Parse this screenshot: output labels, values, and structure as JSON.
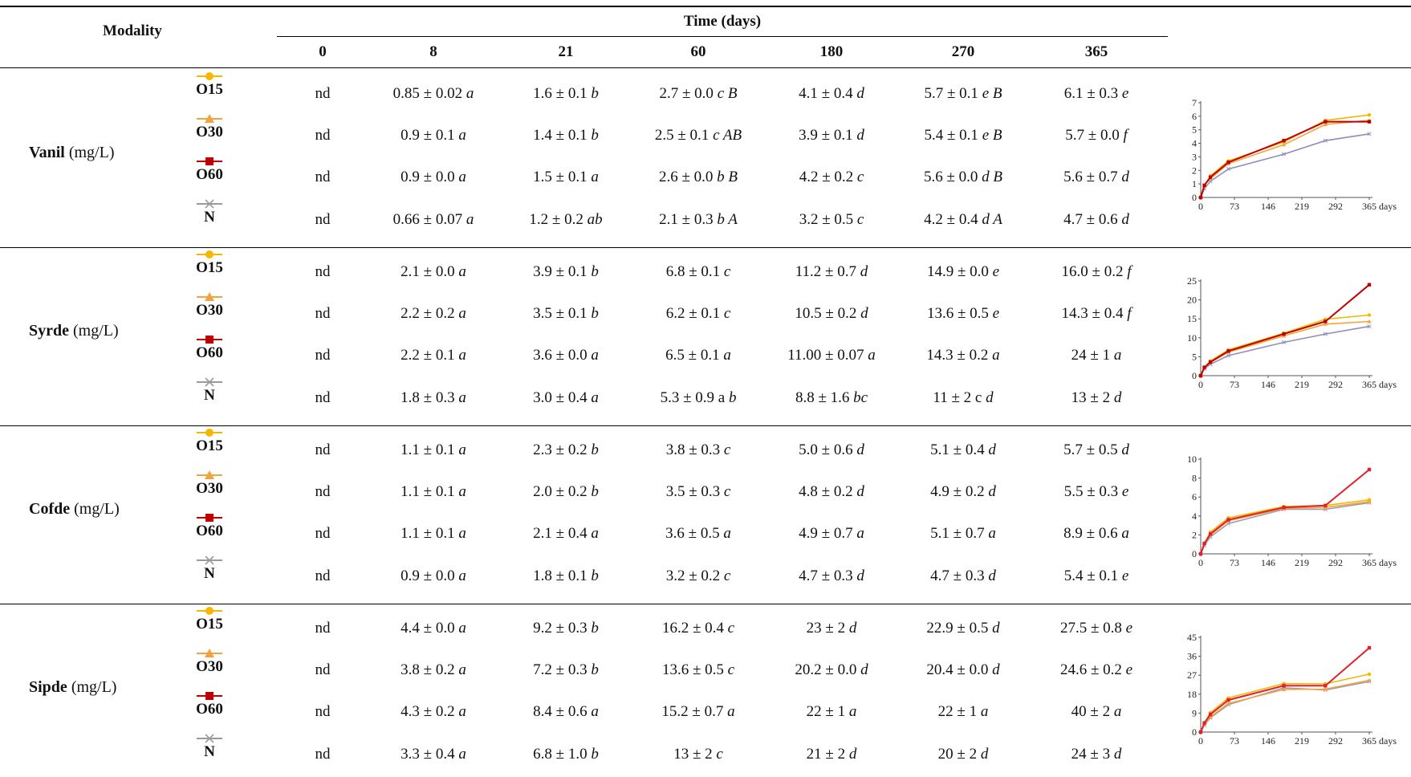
{
  "header": {
    "modality": "Modality",
    "time": "Time (days)",
    "days": [
      "0",
      "8",
      "21",
      "60",
      "180",
      "270",
      "365"
    ]
  },
  "legend": [
    {
      "label": "O15",
      "color": "#F5B800",
      "marker": "circle"
    },
    {
      "label": "O30",
      "color": "#F4A33C",
      "marker": "triangle"
    },
    {
      "label": "O60",
      "color": "#C00000",
      "marker": "square"
    },
    {
      "label": "N",
      "color": "#9A9A9A",
      "marker": "cross"
    }
  ],
  "groups": [
    {
      "name": "Vanil",
      "unit": "(mg/L)",
      "rows": [
        [
          [
            "nd",
            ""
          ],
          [
            "0.85 ± 0.02",
            "a"
          ],
          [
            "1.6 ± 0.1",
            "b"
          ],
          [
            "2.7 ± 0.0",
            "c B"
          ],
          [
            "4.1 ± 0.4",
            "d"
          ],
          [
            "5.7 ± 0.1",
            "e B"
          ],
          [
            "6.1 ± 0.3",
            "e"
          ]
        ],
        [
          [
            "nd",
            ""
          ],
          [
            "0.9 ± 0.1",
            "a"
          ],
          [
            "1.4 ± 0.1",
            "b"
          ],
          [
            "2.5 ± 0.1",
            "c AB"
          ],
          [
            "3.9 ± 0.1",
            "d"
          ],
          [
            "5.4 ± 0.1",
            "e B"
          ],
          [
            "5.7 ± 0.0",
            "f"
          ]
        ],
        [
          [
            "nd",
            ""
          ],
          [
            "0.9 ± 0.0",
            "a"
          ],
          [
            "1.5 ± 0.1",
            "a"
          ],
          [
            "2.6 ± 0.0",
            "b B"
          ],
          [
            "4.2 ± 0.2",
            "c"
          ],
          [
            "5.6 ± 0.0",
            "d B"
          ],
          [
            "5.6 ± 0.7",
            "d"
          ]
        ],
        [
          [
            "nd",
            ""
          ],
          [
            "0.66 ± 0.07",
            "a"
          ],
          [
            "1.2 ± 0.2",
            "ab"
          ],
          [
            "2.1 ± 0.3",
            "b A"
          ],
          [
            "3.2 ± 0.5",
            "c"
          ],
          [
            "4.2 ± 0.4",
            "d A"
          ],
          [
            "4.7 ± 0.6",
            "d"
          ]
        ]
      ],
      "chart": {
        "ymax": 7,
        "yticks": [
          "0",
          "1",
          "2",
          "3",
          "4",
          "5",
          "6",
          "7"
        ],
        "xticks": [
          "0",
          "73",
          "146",
          "219",
          "292",
          "365"
        ],
        "xunit": "days",
        "series": [
          {
            "name": "O15",
            "color": "#F5B800",
            "x": [
              0,
              8,
              21,
              60,
              180,
              270,
              365
            ],
            "y": [
              0,
              0.85,
              1.6,
              2.7,
              4.1,
              5.7,
              6.1
            ]
          },
          {
            "name": "O30",
            "color": "#F4A33C",
            "x": [
              0,
              8,
              21,
              60,
              180,
              270,
              365
            ],
            "y": [
              0,
              0.9,
              1.4,
              2.5,
              3.9,
              5.4,
              5.7
            ]
          },
          {
            "name": "O60",
            "color": "#C00000",
            "x": [
              0,
              8,
              21,
              60,
              180,
              270,
              365
            ],
            "y": [
              0,
              0.9,
              1.5,
              2.6,
              4.2,
              5.6,
              5.6
            ]
          },
          {
            "name": "N",
            "color": "#8E8EBE",
            "x": [
              0,
              8,
              21,
              60,
              180,
              270,
              365
            ],
            "y": [
              0,
              0.66,
              1.2,
              2.1,
              3.2,
              4.2,
              4.7
            ]
          }
        ]
      }
    },
    {
      "name": "Syrde",
      "unit": "(mg/L)",
      "rows": [
        [
          [
            "nd",
            ""
          ],
          [
            "2.1 ± 0.0",
            "a"
          ],
          [
            "3.9 ± 0.1",
            "b"
          ],
          [
            "6.8 ± 0.1",
            "c"
          ],
          [
            "11.2 ± 0.7",
            "d"
          ],
          [
            "14.9 ± 0.0",
            "e"
          ],
          [
            "16.0 ± 0.2",
            "f"
          ]
        ],
        [
          [
            "nd",
            ""
          ],
          [
            "2.2 ± 0.2",
            "a"
          ],
          [
            "3.5 ± 0.1",
            "b"
          ],
          [
            "6.2 ± 0.1",
            "c"
          ],
          [
            "10.5 ± 0.2",
            "d"
          ],
          [
            "13.6 ± 0.5",
            "e"
          ],
          [
            "14.3 ± 0.4",
            "f"
          ]
        ],
        [
          [
            "nd",
            ""
          ],
          [
            "2.2 ± 0.1",
            "a"
          ],
          [
            "3.6 ± 0.0",
            "a"
          ],
          [
            "6.5 ± 0.1",
            "a"
          ],
          [
            "11.00 ± 0.07",
            "a"
          ],
          [
            "14.3 ± 0.2",
            "a"
          ],
          [
            "24 ± 1",
            "a"
          ]
        ],
        [
          [
            "nd",
            ""
          ],
          [
            "1.8 ± 0.3",
            "a"
          ],
          [
            "3.0 ± 0.4",
            "a"
          ],
          [
            "5.3 ± 0.9 a",
            "b"
          ],
          [
            "8.8 ± 1.6",
            "bc"
          ],
          [
            "11 ± 2 c",
            "d"
          ],
          [
            "13 ± 2",
            "d"
          ]
        ]
      ],
      "chart": {
        "ymax": 25,
        "yticks": [
          "0",
          "5",
          "10",
          "15",
          "20",
          "25"
        ],
        "xticks": [
          "0",
          "73",
          "146",
          "219",
          "292",
          "365"
        ],
        "xunit": "days",
        "series": [
          {
            "name": "O15",
            "color": "#F5B800",
            "x": [
              0,
              8,
              21,
              60,
              180,
              270,
              365
            ],
            "y": [
              0,
              2.1,
              3.9,
              6.8,
              11.2,
              14.9,
              16.0
            ]
          },
          {
            "name": "O30",
            "color": "#F4A33C",
            "x": [
              0,
              8,
              21,
              60,
              180,
              270,
              365
            ],
            "y": [
              0,
              2.2,
              3.5,
              6.2,
              10.5,
              13.6,
              14.3
            ]
          },
          {
            "name": "O60",
            "color": "#C00000",
            "x": [
              0,
              8,
              21,
              60,
              180,
              270,
              365
            ],
            "y": [
              0,
              2.2,
              3.6,
              6.5,
              11.0,
              14.3,
              24
            ]
          },
          {
            "name": "N",
            "color": "#8E8EBE",
            "x": [
              0,
              8,
              21,
              60,
              180,
              270,
              365
            ],
            "y": [
              0,
              1.8,
              3.0,
              5.3,
              8.8,
              11,
              13
            ]
          }
        ]
      }
    },
    {
      "name": "Cofde",
      "unit": "(mg/L)",
      "rows": [
        [
          [
            "nd",
            ""
          ],
          [
            "1.1 ± 0.1",
            "a"
          ],
          [
            "2.3 ± 0.2",
            "b"
          ],
          [
            "3.8 ± 0.3",
            "c"
          ],
          [
            "5.0 ± 0.6",
            "d"
          ],
          [
            "5.1 ± 0.4",
            "d"
          ],
          [
            "5.7 ± 0.5",
            "d"
          ]
        ],
        [
          [
            "nd",
            ""
          ],
          [
            "1.1 ± 0.1",
            "a"
          ],
          [
            "2.0 ± 0.2",
            "b"
          ],
          [
            "3.5 ± 0.3",
            "c"
          ],
          [
            "4.8 ± 0.2",
            "d"
          ],
          [
            "4.9 ± 0.2",
            "d"
          ],
          [
            "5.5 ± 0.3",
            "e"
          ]
        ],
        [
          [
            "nd",
            ""
          ],
          [
            "1.1 ± 0.1",
            "a"
          ],
          [
            "2.1 ± 0.4",
            "a"
          ],
          [
            "3.6 ± 0.5",
            "a"
          ],
          [
            "4.9 ± 0.7",
            "a"
          ],
          [
            "5.1 ± 0.7",
            "a"
          ],
          [
            "8.9 ± 0.6",
            "a"
          ]
        ],
        [
          [
            "nd",
            ""
          ],
          [
            "0.9 ± 0.0",
            "a"
          ],
          [
            "1.8 ± 0.1",
            "b"
          ],
          [
            "3.2 ± 0.2",
            "c"
          ],
          [
            "4.7 ± 0.3",
            "d"
          ],
          [
            "4.7 ± 0.3",
            "d"
          ],
          [
            "5.4 ± 0.1",
            "e"
          ]
        ]
      ],
      "chart": {
        "ymax": 10,
        "yticks": [
          "0",
          "2",
          "4",
          "6",
          "8",
          "10"
        ],
        "xticks": [
          "0",
          "73",
          "146",
          "219",
          "292",
          "365"
        ],
        "xunit": "days",
        "series": [
          {
            "name": "O15",
            "color": "#F5B800",
            "x": [
              0,
              8,
              21,
              60,
              180,
              270,
              365
            ],
            "y": [
              0,
              1.1,
              2.3,
              3.8,
              5.0,
              5.1,
              5.7
            ]
          },
          {
            "name": "O30",
            "color": "#F4A33C",
            "x": [
              0,
              8,
              21,
              60,
              180,
              270,
              365
            ],
            "y": [
              0,
              1.1,
              2.0,
              3.5,
              4.8,
              4.9,
              5.5
            ]
          },
          {
            "name": "O60",
            "color": "#E0202A",
            "x": [
              0,
              8,
              21,
              60,
              180,
              270,
              365
            ],
            "y": [
              0,
              1.1,
              2.1,
              3.6,
              4.9,
              5.1,
              8.9
            ]
          },
          {
            "name": "N",
            "color": "#9A9AB8",
            "x": [
              0,
              8,
              21,
              60,
              180,
              270,
              365
            ],
            "y": [
              0,
              0.9,
              1.8,
              3.2,
              4.7,
              4.7,
              5.4
            ]
          }
        ]
      }
    },
    {
      "name": "Sipde",
      "unit": "(mg/L)",
      "rows": [
        [
          [
            "nd",
            ""
          ],
          [
            "4.4 ± 0.0",
            "a"
          ],
          [
            "9.2 ± 0.3",
            "b"
          ],
          [
            "16.2 ± 0.4",
            "c"
          ],
          [
            "23 ± 2",
            "d"
          ],
          [
            "22.9 ± 0.5",
            "d"
          ],
          [
            "27.5 ± 0.8",
            "e"
          ]
        ],
        [
          [
            "nd",
            ""
          ],
          [
            "3.8 ± 0.2",
            "a"
          ],
          [
            "7.2 ± 0.3",
            "b"
          ],
          [
            "13.6 ± 0.5",
            "c"
          ],
          [
            "20.2 ± 0.0",
            "d"
          ],
          [
            "20.4 ± 0.0",
            "d"
          ],
          [
            "24.6 ± 0.2",
            "e"
          ]
        ],
        [
          [
            "nd",
            ""
          ],
          [
            "4.3 ± 0.2",
            "a"
          ],
          [
            "8.4 ± 0.6",
            "a"
          ],
          [
            "15.2 ± 0.7",
            "a"
          ],
          [
            "22 ± 1",
            "a"
          ],
          [
            "22 ± 1",
            "a"
          ],
          [
            "40 ± 2",
            "a"
          ]
        ],
        [
          [
            "nd",
            ""
          ],
          [
            "3.3 ± 0.4",
            "a"
          ],
          [
            "6.8 ± 1.0",
            "b"
          ],
          [
            "13 ± 2",
            "c"
          ],
          [
            "21 ± 2",
            "d"
          ],
          [
            "20 ± 2",
            "d"
          ],
          [
            "24 ± 3",
            "d"
          ]
        ]
      ],
      "chart": {
        "ymax": 45,
        "yticks": [
          "0",
          "9",
          "18",
          "27",
          "36",
          "45"
        ],
        "xticks": [
          "0",
          "73",
          "146",
          "219",
          "292",
          "365"
        ],
        "xunit": "days",
        "series": [
          {
            "name": "O15",
            "color": "#F5B800",
            "x": [
              0,
              8,
              21,
              60,
              180,
              270,
              365
            ],
            "y": [
              0,
              4.4,
              9.2,
              16.2,
              23,
              22.9,
              27.5
            ]
          },
          {
            "name": "O30",
            "color": "#F4A33C",
            "x": [
              0,
              8,
              21,
              60,
              180,
              270,
              365
            ],
            "y": [
              0,
              3.8,
              7.2,
              13.6,
              20.2,
              20.4,
              24.6
            ]
          },
          {
            "name": "O60",
            "color": "#E0202A",
            "x": [
              0,
              8,
              21,
              60,
              180,
              270,
              365
            ],
            "y": [
              0,
              4.3,
              8.4,
              15.2,
              22,
              22,
              40
            ]
          },
          {
            "name": "N",
            "color": "#9A9AB8",
            "x": [
              0,
              8,
              21,
              60,
              180,
              270,
              365
            ],
            "y": [
              0,
              3.3,
              6.8,
              13,
              21,
              20,
              24
            ]
          }
        ]
      }
    }
  ]
}
